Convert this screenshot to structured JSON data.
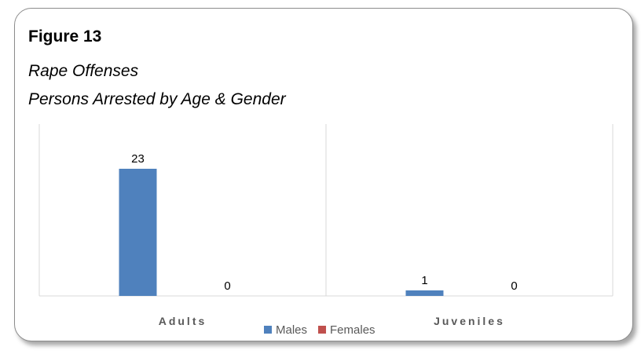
{
  "figure_label": "Figure 13",
  "subtitle_line1": "Rape Offenses",
  "subtitle_line2": "Persons Arrested by Age & Gender",
  "chart_data": {
    "type": "bar",
    "categories": [
      "Adults",
      "Juveniles"
    ],
    "series": [
      {
        "name": "Males",
        "values": [
          23,
          1
        ],
        "color": "#4f81bd"
      },
      {
        "name": "Females",
        "values": [
          0,
          0
        ],
        "color": "#c0504d"
      }
    ],
    "ylim": [
      0,
      26
    ],
    "data_labels": true,
    "legend_position": "bottom",
    "grid": false
  }
}
